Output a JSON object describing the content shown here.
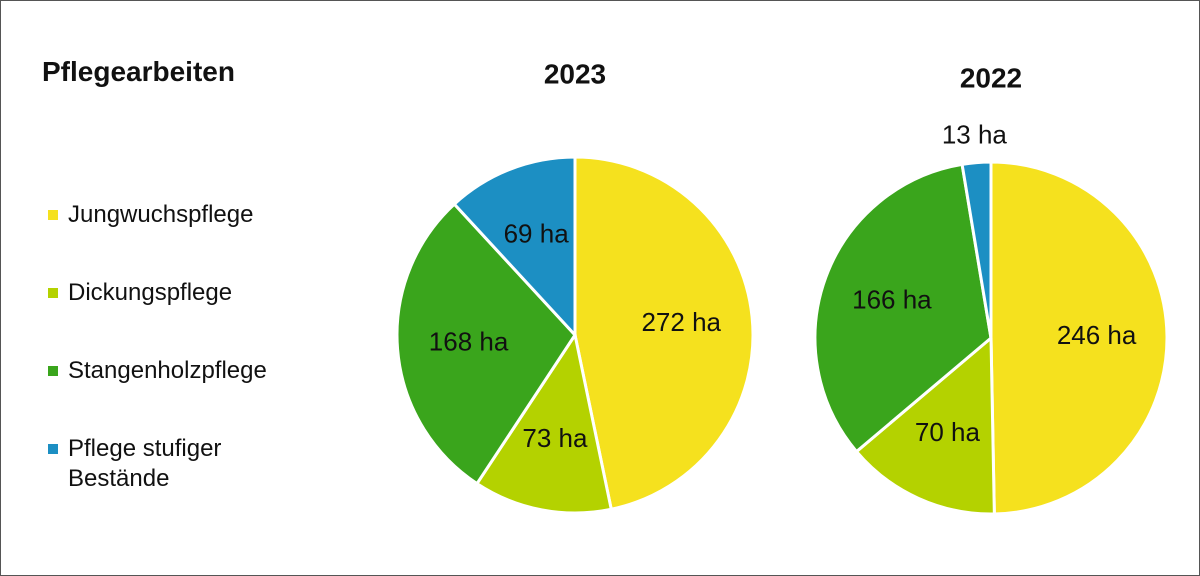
{
  "title": "Pflegearbeiten",
  "legend": {
    "labels": [
      "Jungwuchspflege",
      "Dickungspflege",
      "Stangenholzpflege",
      "Pflege stufiger Bestände"
    ],
    "colors": [
      "#f5e11e",
      "#b4d200",
      "#3aa51c",
      "#1c8fc3"
    ]
  },
  "chart_data": [
    {
      "type": "pie",
      "title": "2023",
      "values": [
        272,
        73,
        168,
        69
      ],
      "value_labels": [
        "272 ha",
        "73 ha",
        "168 ha",
        "69 ha"
      ]
    },
    {
      "type": "pie",
      "title": "2022",
      "values": [
        246,
        70,
        166,
        13
      ],
      "value_labels": [
        "246 ha",
        "70 ha",
        "166 ha",
        "13 ha"
      ]
    }
  ]
}
